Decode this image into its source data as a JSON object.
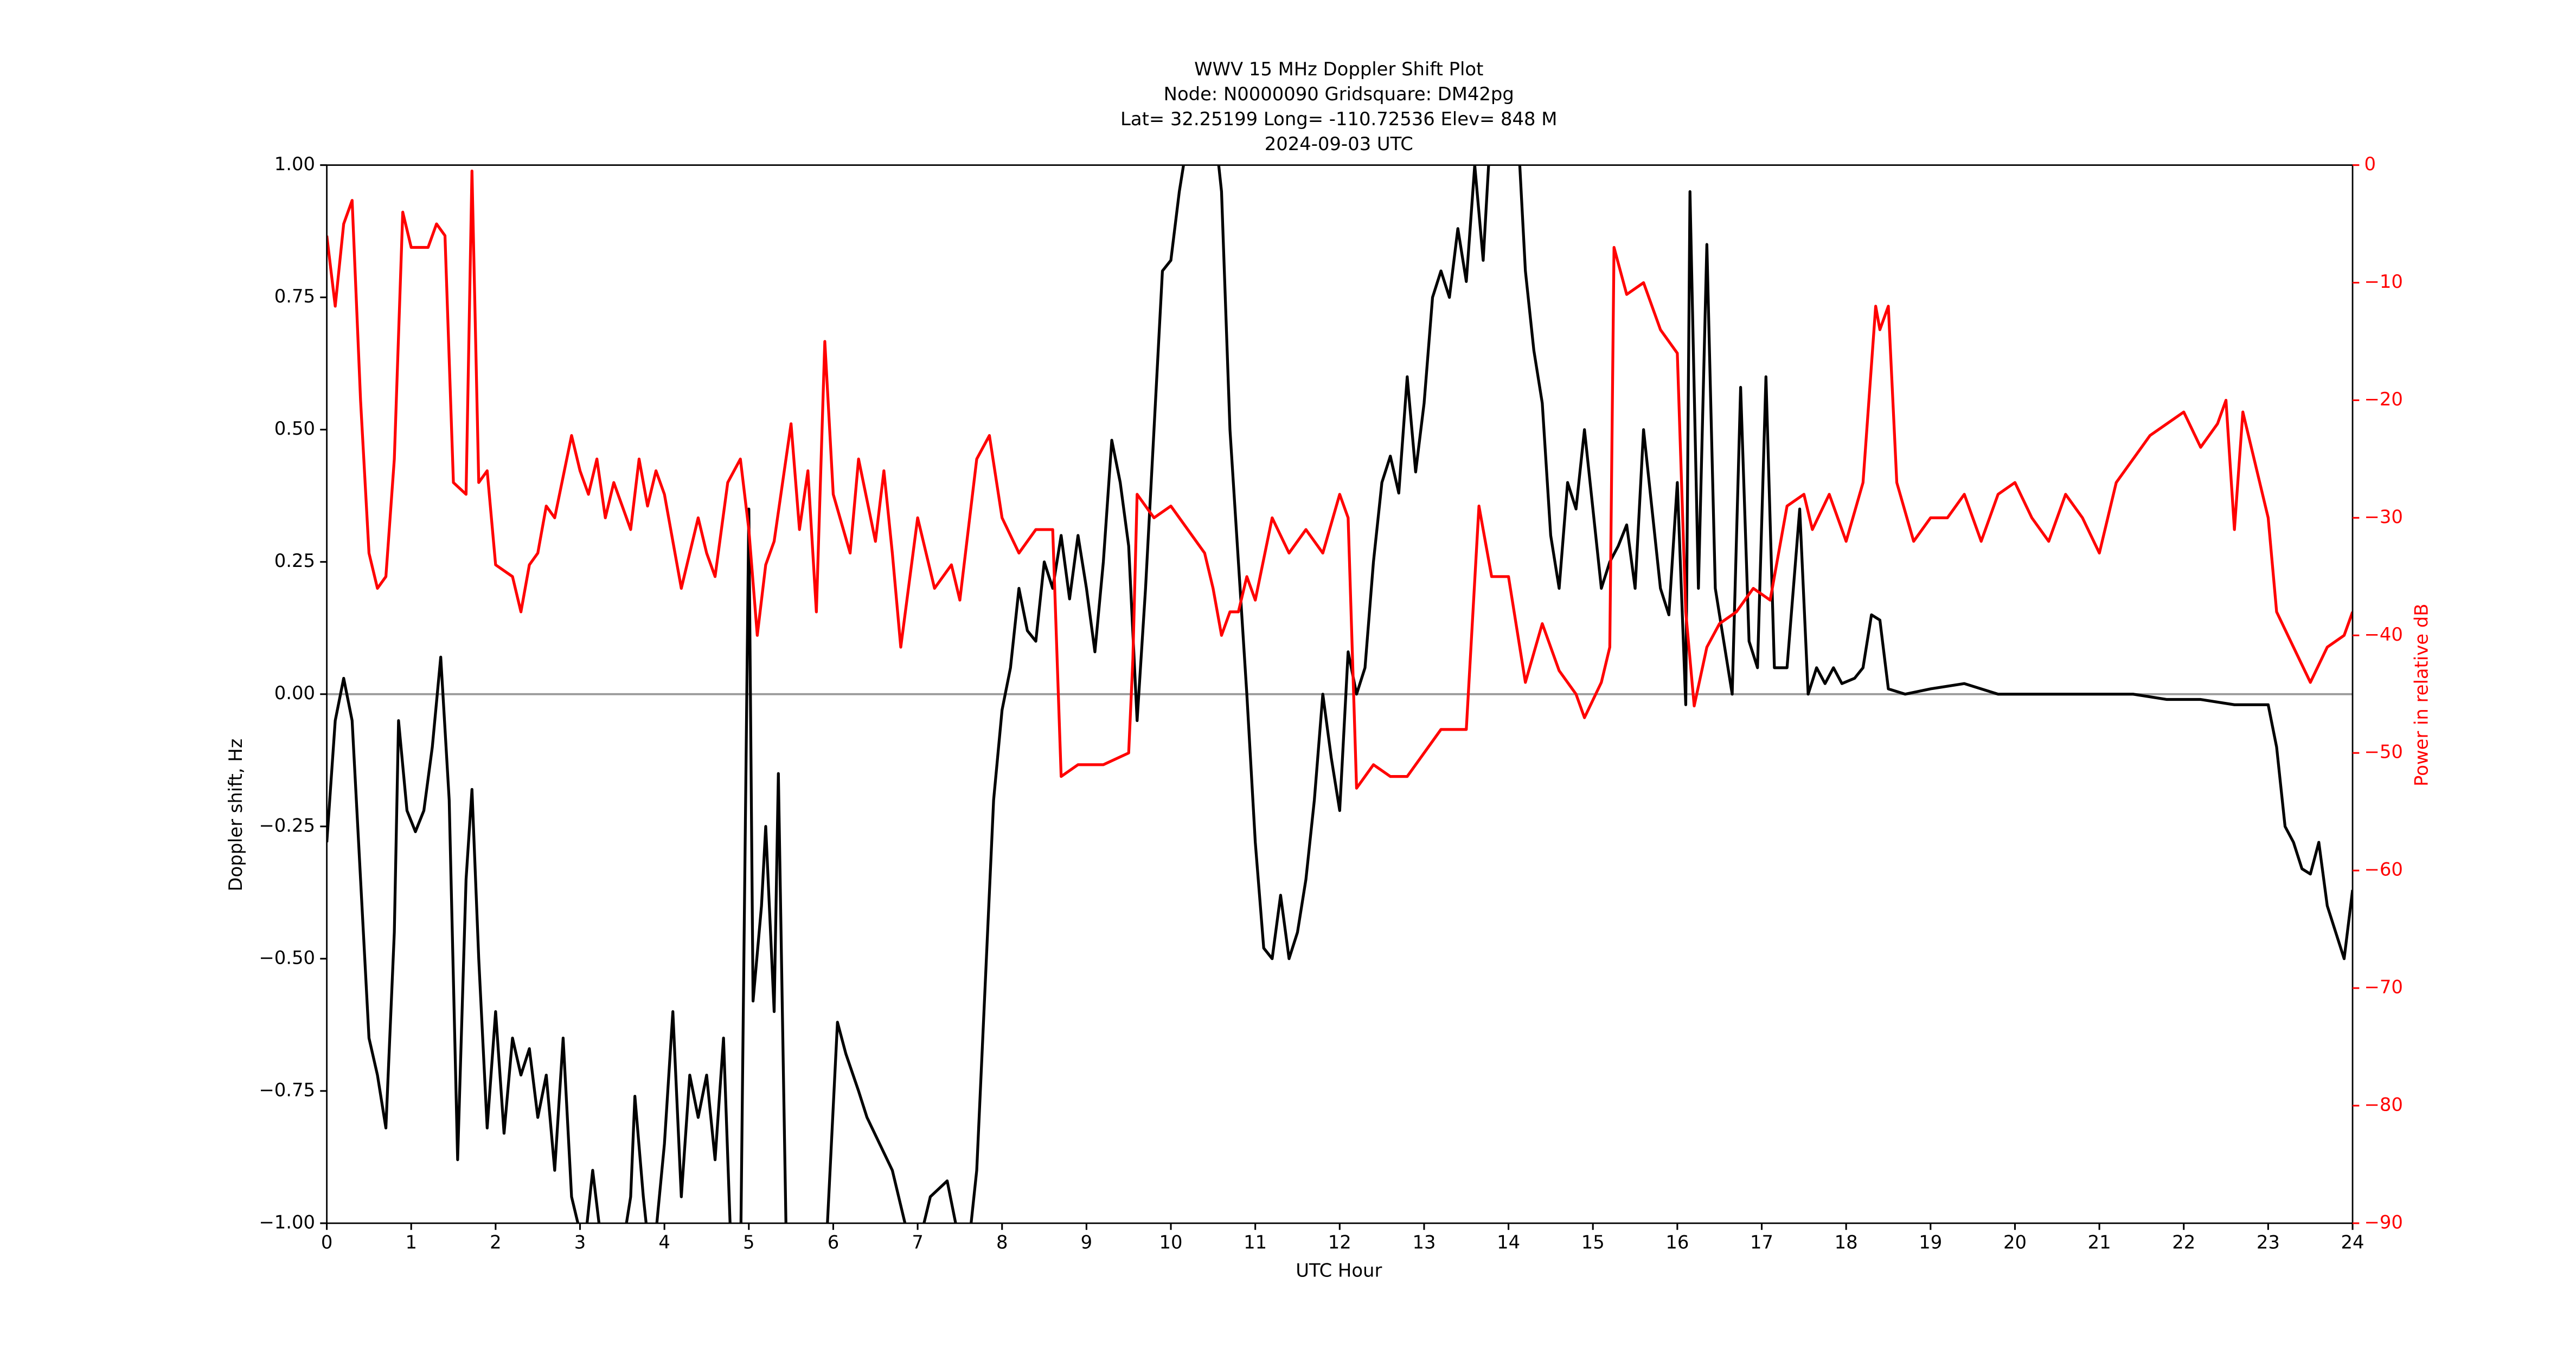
{
  "chart_data": {
    "type": "line",
    "title": [
      "WWV 15 MHz Doppler Shift Plot",
      "Node:  N0000090     Gridsquare:  DM42pg",
      "Lat= 32.25199    Long= -110.72536    Elev= 848 M",
      "2024-09-03  UTC"
    ],
    "xlabel": "UTC Hour",
    "ylabel": "Doppler shift, Hz",
    "y2label": "Power in relative dB",
    "xlim": [
      0,
      24
    ],
    "xticks": [
      0,
      1,
      2,
      3,
      4,
      5,
      6,
      7,
      8,
      9,
      10,
      11,
      12,
      13,
      14,
      15,
      16,
      17,
      18,
      19,
      20,
      21,
      22,
      23,
      24
    ],
    "ylim": [
      -1,
      1
    ],
    "yticks": [
      {
        "value": -1,
        "label": "−1.00"
      },
      {
        "value": -0.75,
        "label": "−0.75"
      },
      {
        "value": -0.5,
        "label": "−0.50"
      },
      {
        "value": -0.25,
        "label": "−0.25"
      },
      {
        "value": 0,
        "label": "0.00"
      },
      {
        "value": 0.25,
        "label": "0.25"
      },
      {
        "value": 0.5,
        "label": "0.50"
      },
      {
        "value": 0.75,
        "label": "0.75"
      },
      {
        "value": 1,
        "label": "1.00"
      }
    ],
    "y2lim": [
      -90,
      0
    ],
    "y2ticks": [
      {
        "value": -90,
        "label": "−90"
      },
      {
        "value": -80,
        "label": "−80"
      },
      {
        "value": -70,
        "label": "−70"
      },
      {
        "value": -60,
        "label": "−60"
      },
      {
        "value": -50,
        "label": "−50"
      },
      {
        "value": -40,
        "label": "−40"
      },
      {
        "value": -30,
        "label": "−30"
      },
      {
        "value": -20,
        "label": "−20"
      },
      {
        "value": -10,
        "label": "−10"
      },
      0
    ],
    "zero_line": {
      "value": 0,
      "color": "#999999"
    },
    "series": [
      {
        "name": "Doppler shift",
        "color": "#000000",
        "axis": "y",
        "x": [
          0,
          0.1,
          0.2,
          0.3,
          0.4,
          0.5,
          0.6,
          0.7,
          0.8,
          0.85,
          0.95,
          1.05,
          1.15,
          1.25,
          1.35,
          1.45,
          1.55,
          1.65,
          1.72,
          1.8,
          1.9,
          2.0,
          2.1,
          2.2,
          2.3,
          2.4,
          2.5,
          2.6,
          2.7,
          2.8,
          2.9,
          3.05,
          3.15,
          3.3,
          3.5,
          3.6,
          3.65,
          3.75,
          3.85,
          4.0,
          4.1,
          4.2,
          4.3,
          4.4,
          4.5,
          4.6,
          4.7,
          4.8,
          4.9,
          5.0,
          5.05,
          5.15,
          5.2,
          5.3,
          5.35,
          5.45,
          5.9,
          6.05,
          6.15,
          6.3,
          6.4,
          6.55,
          6.7,
          6.85,
          7.0,
          7.15,
          7.35,
          7.45,
          7.6,
          7.7,
          7.9,
          8.0,
          8.1,
          8.2,
          8.3,
          8.4,
          8.5,
          8.6,
          8.7,
          8.8,
          8.9,
          9.0,
          9.1,
          9.2,
          9.3,
          9.4,
          9.5,
          9.6,
          9.7,
          9.8,
          9.9,
          10.0,
          10.1,
          10.2,
          10.5,
          10.6,
          10.7,
          10.8,
          10.9,
          11.0,
          11.1,
          11.2,
          11.3,
          11.4,
          11.5,
          11.6,
          11.7,
          11.8,
          11.9,
          12.0,
          12.1,
          12.2,
          12.3,
          12.4,
          12.5,
          12.6,
          12.7,
          12.8,
          12.9,
          13.0,
          13.1,
          13.2,
          13.3,
          13.4,
          13.5,
          13.6,
          13.7,
          13.8,
          14.1,
          14.2,
          14.3,
          14.4,
          14.5,
          14.6,
          14.7,
          14.8,
          14.9,
          15.0,
          15.1,
          15.2,
          15.3,
          15.4,
          15.5,
          15.6,
          15.7,
          15.8,
          15.9,
          16.0,
          16.1,
          16.15,
          16.25,
          16.35,
          16.45,
          16.55,
          16.65,
          16.75,
          16.85,
          16.95,
          17.05,
          17.15,
          17.3,
          17.45,
          17.55,
          17.65,
          17.75,
          17.85,
          17.95,
          18.1,
          18.2,
          18.3,
          18.4,
          18.5,
          18.7,
          19.0,
          19.4,
          19.8,
          20.2,
          20.6,
          21.0,
          21.4,
          21.8,
          22.2,
          22.6,
          23.0,
          23.1,
          23.2,
          23.3,
          23.4,
          23.5,
          23.6,
          23.7,
          23.8,
          23.9,
          24.0
        ],
        "values": [
          -0.28,
          -0.05,
          0.03,
          -0.05,
          -0.35,
          -0.65,
          -0.72,
          -0.82,
          -0.45,
          -0.05,
          -0.22,
          -0.26,
          -0.22,
          -0.1,
          0.07,
          -0.2,
          -0.88,
          -0.35,
          -0.18,
          -0.5,
          -0.82,
          -0.6,
          -0.83,
          -0.65,
          -0.72,
          -0.67,
          -0.8,
          -0.72,
          -0.9,
          -0.65,
          -0.95,
          -1.05,
          -0.9,
          -1.1,
          -1.05,
          -0.95,
          -0.76,
          -0.95,
          -1.1,
          -0.85,
          -0.6,
          -0.95,
          -0.72,
          -0.8,
          -0.72,
          -0.88,
          -0.65,
          -1.1,
          -1.1,
          0.35,
          -0.58,
          -0.4,
          -0.25,
          -0.6,
          -0.15,
          -1.1,
          -1.1,
          -0.62,
          -0.68,
          -0.75,
          -0.8,
          -0.85,
          -0.9,
          -1.0,
          -1.05,
          -0.95,
          -0.92,
          -1.0,
          -1.05,
          -0.9,
          -0.2,
          -0.03,
          0.05,
          0.2,
          0.12,
          0.1,
          0.25,
          0.2,
          0.3,
          0.18,
          0.3,
          0.2,
          0.08,
          0.25,
          0.48,
          0.4,
          0.28,
          -0.05,
          0.2,
          0.5,
          0.8,
          0.82,
          0.95,
          1.05,
          1.1,
          0.95,
          0.5,
          0.25,
          0.0,
          -0.28,
          -0.48,
          -0.5,
          -0.38,
          -0.5,
          -0.45,
          -0.35,
          -0.2,
          0.0,
          -0.12,
          -0.22,
          0.08,
          0.0,
          0.05,
          0.25,
          0.4,
          0.45,
          0.38,
          0.6,
          0.42,
          0.55,
          0.75,
          0.8,
          0.75,
          0.88,
          0.78,
          1.0,
          0.82,
          1.1,
          1.1,
          0.8,
          0.65,
          0.55,
          0.3,
          0.2,
          0.4,
          0.35,
          0.5,
          0.35,
          0.2,
          0.25,
          0.28,
          0.32,
          0.2,
          0.5,
          0.35,
          0.2,
          0.15,
          0.4,
          -0.02,
          0.95,
          0.2,
          0.85,
          0.2,
          0.1,
          0.0,
          0.58,
          0.1,
          0.05,
          0.6,
          0.05,
          0.05,
          0.35,
          0.0,
          0.05,
          0.02,
          0.05,
          0.02,
          0.03,
          0.05,
          0.15,
          0.14,
          0.01,
          0.0,
          0.01,
          0.02,
          0.0,
          0.0,
          0.0,
          0.0,
          0.0,
          -0.01,
          -0.01,
          -0.02,
          -0.02,
          -0.1,
          -0.25,
          -0.28,
          -0.33,
          -0.34,
          -0.28,
          -0.4,
          -0.45,
          -0.5,
          -0.37
        ]
      },
      {
        "name": "Power",
        "color": "#ff0000",
        "axis": "y2",
        "x": [
          0,
          0.1,
          0.2,
          0.3,
          0.4,
          0.5,
          0.6,
          0.7,
          0.8,
          0.9,
          1.0,
          1.2,
          1.3,
          1.4,
          1.5,
          1.65,
          1.72,
          1.8,
          1.9,
          2.0,
          2.2,
          2.3,
          2.4,
          2.5,
          2.6,
          2.7,
          2.9,
          3.0,
          3.1,
          3.2,
          3.3,
          3.4,
          3.6,
          3.7,
          3.8,
          3.9,
          4.0,
          4.2,
          4.4,
          4.5,
          4.6,
          4.75,
          4.9,
          5.0,
          5.1,
          5.2,
          5.3,
          5.5,
          5.6,
          5.7,
          5.8,
          5.9,
          6.0,
          6.2,
          6.3,
          6.5,
          6.6,
          6.7,
          6.8,
          7.0,
          7.2,
          7.4,
          7.5,
          7.7,
          7.85,
          8.0,
          8.2,
          8.4,
          8.6,
          8.7,
          8.9,
          9.2,
          9.5,
          9.55,
          9.6,
          9.8,
          10.0,
          10.2,
          10.4,
          10.5,
          10.6,
          10.7,
          10.8,
          10.9,
          11.0,
          11.2,
          11.4,
          11.6,
          11.8,
          12.0,
          12.1,
          12.2,
          12.4,
          12.6,
          12.8,
          13.0,
          13.2,
          13.5,
          13.65,
          13.8,
          14.0,
          14.2,
          14.4,
          14.6,
          14.8,
          14.9,
          15.1,
          15.2,
          15.25,
          15.4,
          15.6,
          15.8,
          16.0,
          16.1,
          16.2,
          16.35,
          16.5,
          16.7,
          16.9,
          17.1,
          17.3,
          17.5,
          17.6,
          17.8,
          18.0,
          18.2,
          18.35,
          18.4,
          18.5,
          18.6,
          18.8,
          19.0,
          19.2,
          19.4,
          19.6,
          19.8,
          20.0,
          20.2,
          20.4,
          20.6,
          20.8,
          21.0,
          21.2,
          21.4,
          21.6,
          21.8,
          22.0,
          22.2,
          22.4,
          22.5,
          22.6,
          22.7,
          22.8,
          23.0,
          23.1,
          23.3,
          23.5,
          23.7,
          23.9,
          24.0
        ],
        "values": [
          -6,
          -12,
          -5,
          -3,
          -20,
          -33,
          -36,
          -35,
          -25,
          -4,
          -7,
          -7,
          -5,
          -6,
          -27,
          -28,
          -0.5,
          -27,
          -26,
          -34,
          -35,
          -38,
          -34,
          -33,
          -29,
          -30,
          -23,
          -26,
          -28,
          -25,
          -30,
          -27,
          -31,
          -25,
          -29,
          -26,
          -28,
          -36,
          -30,
          -33,
          -35,
          -27,
          -25,
          -31,
          -40,
          -34,
          -32,
          -22,
          -31,
          -26,
          -38,
          -15,
          -28,
          -33,
          -25,
          -32,
          -26,
          -33,
          -41,
          -30,
          -36,
          -34,
          -37,
          -25,
          -23,
          -30,
          -33,
          -31,
          -31,
          -52,
          -51,
          -51,
          -50,
          -42,
          -28,
          -30,
          -29,
          -31,
          -33,
          -36,
          -40,
          -38,
          -38,
          -35,
          -37,
          -30,
          -33,
          -31,
          -33,
          -28,
          -30,
          -53,
          -51,
          -52,
          -52,
          -50,
          -48,
          -48,
          -29,
          -35,
          -35,
          -44,
          -39,
          -43,
          -45,
          -47,
          -44,
          -41,
          -7,
          -11,
          -10,
          -14,
          -16,
          -38,
          -46,
          -41,
          -39,
          -38,
          -36,
          -37,
          -29,
          -28,
          -31,
          -28,
          -32,
          -27,
          -12,
          -14,
          -12,
          -27,
          -32,
          -30,
          -30,
          -28,
          -32,
          -28,
          -27,
          -30,
          -32,
          -28,
          -30,
          -33,
          -27,
          -25,
          -23,
          -22,
          -21,
          -24,
          -22,
          -20,
          -31,
          -21,
          -24,
          -30,
          -38,
          -41,
          -44,
          -41,
          -40,
          -38
        ]
      }
    ]
  }
}
